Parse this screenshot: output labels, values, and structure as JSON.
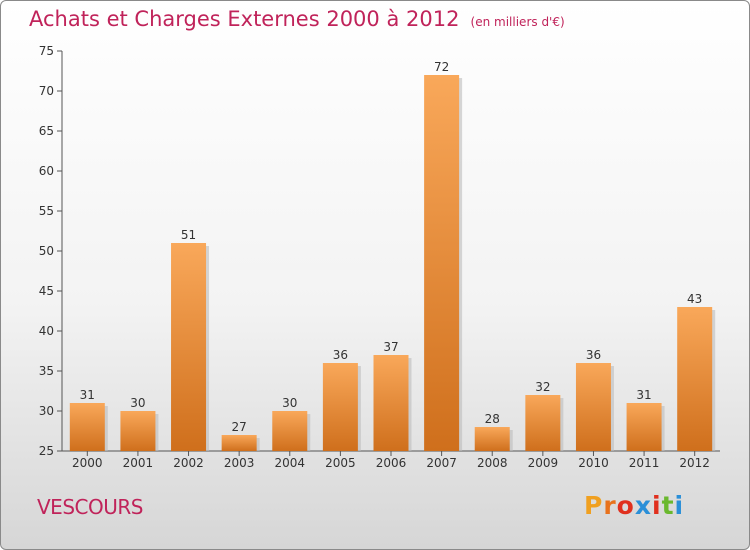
{
  "chart_data": {
    "type": "bar",
    "title": "Achats et Charges Externes 2000 à 2012",
    "subtitle": "(en milliers d'€)",
    "categories": [
      "2000",
      "2001",
      "2002",
      "2003",
      "2004",
      "2005",
      "2006",
      "2007",
      "2008",
      "2009",
      "2010",
      "2011",
      "2012"
    ],
    "values": [
      31,
      30,
      51,
      27,
      30,
      36,
      37,
      72,
      28,
      32,
      36,
      31,
      43
    ],
    "ylim": [
      25,
      75
    ],
    "yticks": [
      25,
      30,
      35,
      40,
      45,
      50,
      55,
      60,
      65,
      70,
      75
    ],
    "grid": false,
    "bar_color_top": "#f9a85a",
    "bar_color_bottom": "#cf6f1c"
  },
  "footer": {
    "commune": "VESCOURS",
    "logo": "Proxiti"
  },
  "colors": {
    "title": "#c0235a",
    "logo_letters": [
      "#f0a020",
      "#e8721c",
      "#e0301e",
      "#2a8fd8",
      "#e0301e",
      "#6ab82e",
      "#2a8fd8"
    ]
  }
}
